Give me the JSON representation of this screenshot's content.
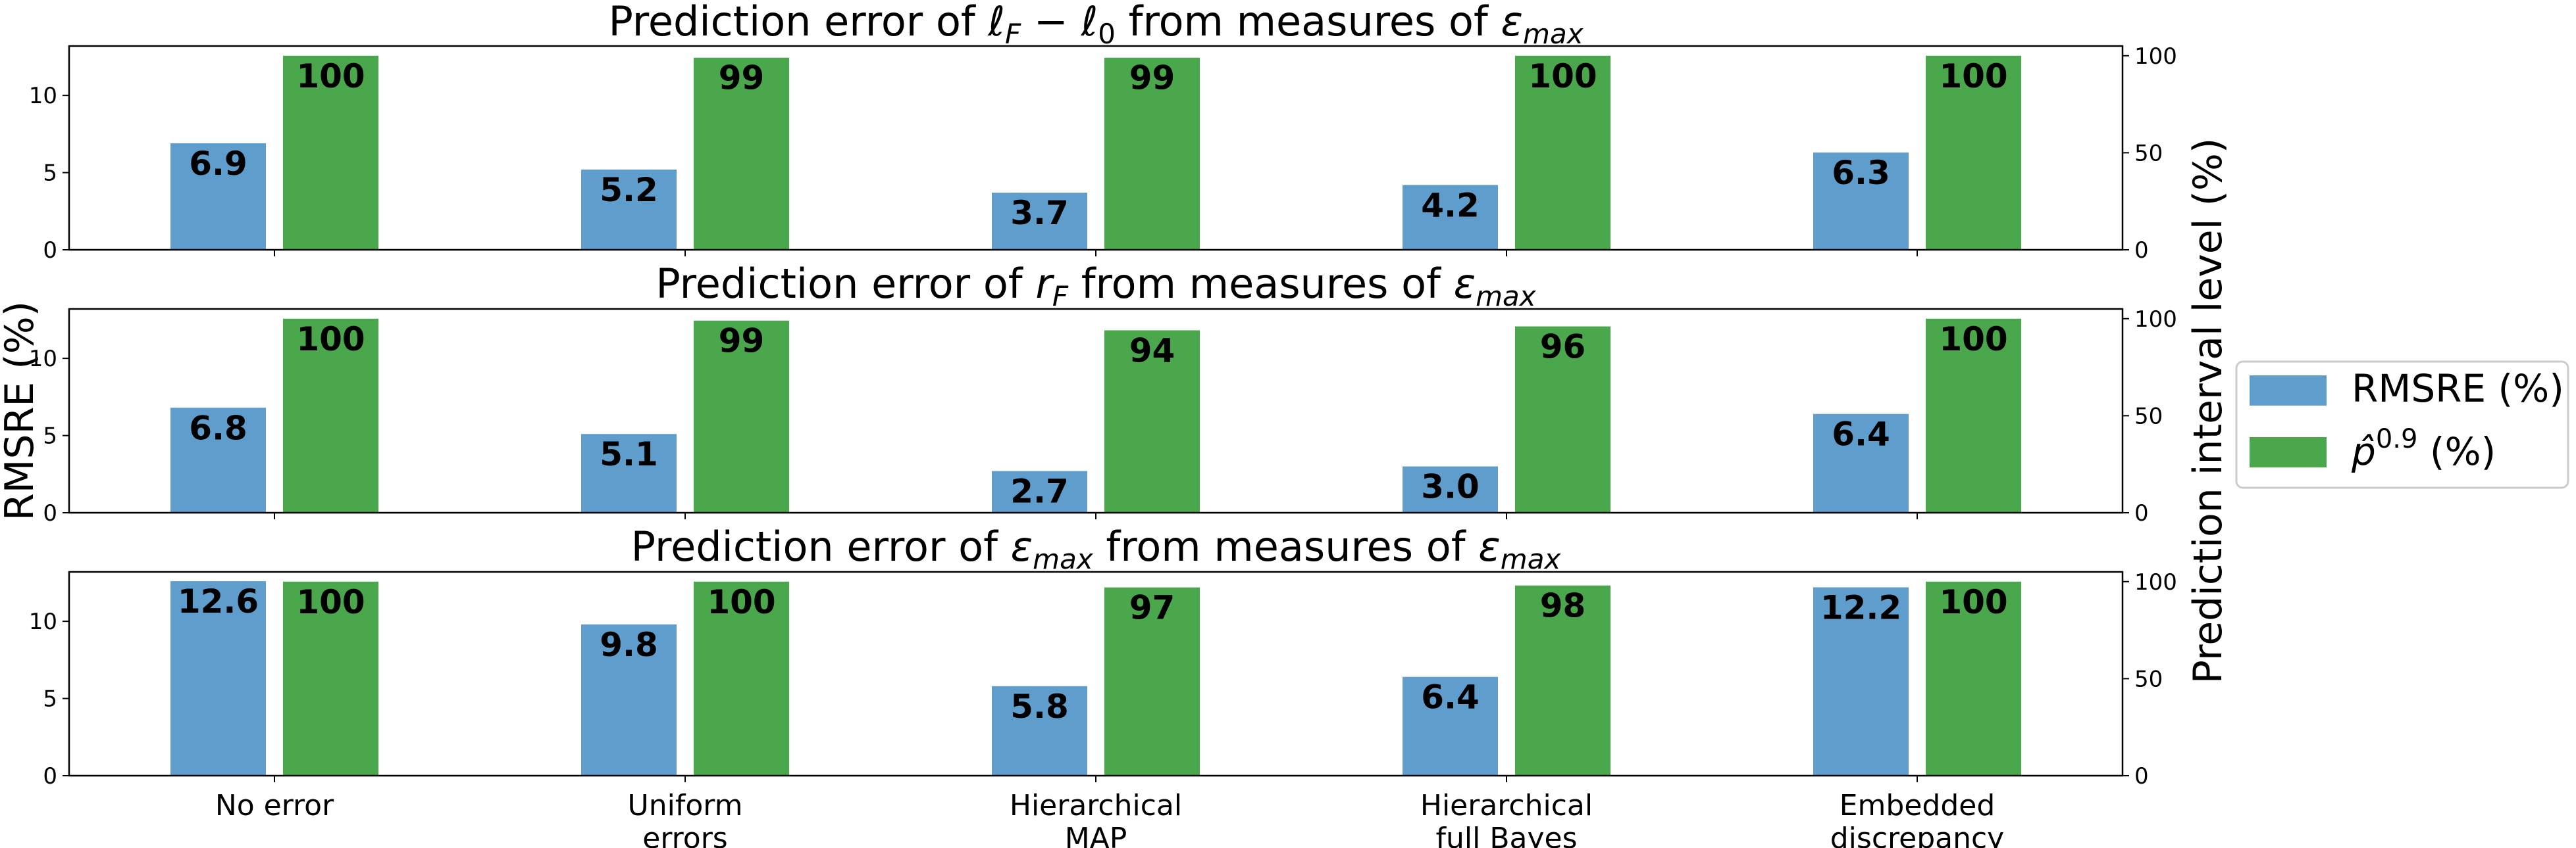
{
  "colors": {
    "rmsre": "#5f9ecc",
    "p": "#4ba74b",
    "frame": "#000000",
    "legend_border": "#cccccc"
  },
  "chart_data": {
    "type": "bar",
    "categories": [
      [
        "No error"
      ],
      [
        "Uniform",
        "errors"
      ],
      [
        "Hierarchical",
        "MAP"
      ],
      [
        "Hierarchical",
        "full Bayes"
      ],
      [
        "Embedded",
        "discrepancy"
      ]
    ],
    "ylabel": "RMSRE (%)",
    "ylabel_right": "Prediction interval level (%)",
    "legend": {
      "position": "right",
      "items": [
        {
          "series": 0,
          "label": "RMSRE (%)"
        },
        {
          "series": 1,
          "label_base": "p̂",
          "label_sup": "0.9",
          "label_rest": " (%)"
        }
      ]
    },
    "panels": [
      {
        "title": {
          "prefix": "Prediction error of ",
          "math": "ℓ",
          "math_sub": "F",
          "mid": " − ℓ",
          "mid_sub": "0",
          "suffix": " from measures of ",
          "suffix_math": "ε",
          "suffix_sub": "max"
        },
        "ylim_left": [
          0,
          13.2
        ],
        "yticks_left": [
          0,
          5,
          10
        ],
        "ylim_right": [
          0,
          105
        ],
        "yticks_right": [
          0,
          50,
          100
        ],
        "series": [
          {
            "name": "RMSRE (%)",
            "axis": "left",
            "values": [
              6.9,
              5.2,
              3.7,
              4.2,
              6.3
            ],
            "labels": [
              "6.9",
              "5.2",
              "3.7",
              "4.2",
              "6.3"
            ]
          },
          {
            "name": "p̂0.9 (%)",
            "axis": "right",
            "values": [
              100,
              99,
              99,
              100,
              100
            ],
            "labels": [
              "100",
              "99",
              "99",
              "100",
              "100"
            ]
          }
        ]
      },
      {
        "title": {
          "prefix": "Prediction error of ",
          "math": "r",
          "math_sub": "F",
          "mid": "",
          "mid_sub": "",
          "suffix": " from measures of ",
          "suffix_math": "ε",
          "suffix_sub": "max"
        },
        "ylim_left": [
          0,
          13.2
        ],
        "yticks_left": [
          0,
          5,
          10
        ],
        "ylim_right": [
          0,
          105
        ],
        "yticks_right": [
          0,
          50,
          100
        ],
        "series": [
          {
            "name": "RMSRE (%)",
            "axis": "left",
            "values": [
              6.8,
              5.1,
              2.7,
              3.0,
              6.4
            ],
            "labels": [
              "6.8",
              "5.1",
              "2.7",
              "3.0",
              "6.4"
            ]
          },
          {
            "name": "p̂0.9 (%)",
            "axis": "right",
            "values": [
              100,
              99,
              94,
              96,
              100
            ],
            "labels": [
              "100",
              "99",
              "94",
              "96",
              "100"
            ]
          }
        ]
      },
      {
        "title": {
          "prefix": "Prediction error of ",
          "math": "ε",
          "math_sub": "max",
          "mid": "",
          "mid_sub": "",
          "suffix": " from measures of ",
          "suffix_math": "ε",
          "suffix_sub": "max"
        },
        "ylim_left": [
          0,
          13.2
        ],
        "yticks_left": [
          0,
          5,
          10
        ],
        "ylim_right": [
          0,
          105
        ],
        "yticks_right": [
          0,
          50,
          100
        ],
        "series": [
          {
            "name": "RMSRE (%)",
            "axis": "left",
            "values": [
              12.6,
              9.8,
              5.8,
              6.4,
              12.2
            ],
            "labels": [
              "12.6",
              "9.8",
              "5.8",
              "6.4",
              "12.2"
            ]
          },
          {
            "name": "p̂0.9 (%)",
            "axis": "right",
            "values": [
              100,
              100,
              97,
              98,
              100
            ],
            "labels": [
              "100",
              "100",
              "97",
              "98",
              "100"
            ]
          }
        ]
      }
    ]
  }
}
